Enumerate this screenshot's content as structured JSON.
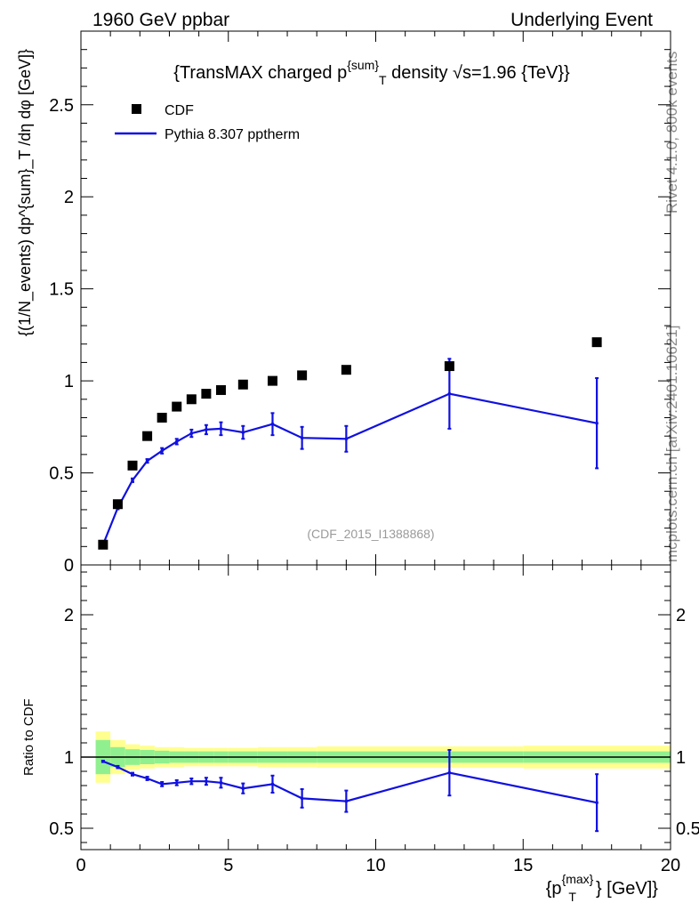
{
  "header": {
    "left": "1960 GeV ppbar",
    "right": "Underlying Event"
  },
  "side_text": {
    "rivet": "Rivet 4.1.0,  800k events",
    "mcplots": "mcplots.cern.ch [arXiv:2401.10621]"
  },
  "chart_data": [
    {
      "type": "scatter",
      "title_parts": {
        "pre": "{TransMAX charged p",
        "sup": "{sum}",
        "sub": "T",
        "post": " density √s=1.96 {TeV}}"
      },
      "ylabel": "{(1/N_events) dp^{sum}_T /dη  dφ [GeV]}",
      "watermark": "(CDF_2015_I1388868)",
      "xlim": [
        0,
        20
      ],
      "ylim": [
        0,
        2.9
      ],
      "xticks": [
        "0",
        "5",
        "10",
        "15",
        "20"
      ],
      "yticks": [
        {
          "v": 0,
          "t": "0"
        },
        {
          "v": 0.5,
          "t": "0.5"
        },
        {
          "v": 1,
          "t": "1"
        },
        {
          "v": 1.5,
          "t": "1.5"
        },
        {
          "v": 2,
          "t": "2"
        },
        {
          "v": 2.5,
          "t": "2.5"
        }
      ],
      "legend": [
        {
          "name": "CDF",
          "style": "marker"
        },
        {
          "name": "Pythia 8.307 pptherm",
          "style": "line"
        }
      ],
      "series": [
        {
          "name": "CDF",
          "x": [
            0.75,
            1.25,
            1.75,
            2.25,
            2.75,
            3.25,
            3.75,
            4.25,
            4.75,
            5.5,
            6.5,
            7.5,
            9.0,
            12.5,
            17.5
          ],
          "y": [
            0.11,
            0.33,
            0.54,
            0.7,
            0.8,
            0.86,
            0.9,
            0.93,
            0.95,
            0.98,
            1.0,
            1.03,
            1.06,
            1.08,
            1.21
          ]
        },
        {
          "name": "Pythia 8.307 pptherm",
          "x": [
            0.75,
            1.25,
            1.75,
            2.25,
            2.75,
            3.25,
            3.75,
            4.25,
            4.75,
            5.5,
            6.5,
            7.5,
            9.0,
            12.5,
            17.5
          ],
          "y": [
            0.11,
            0.31,
            0.46,
            0.565,
            0.62,
            0.67,
            0.715,
            0.735,
            0.74,
            0.72,
            0.765,
            0.69,
            0.685,
            0.93,
            0.77
          ],
          "err": [
            0.005,
            0.008,
            0.01,
            0.01,
            0.015,
            0.015,
            0.02,
            0.025,
            0.035,
            0.035,
            0.06,
            0.06,
            0.07,
            0.19,
            0.245
          ]
        }
      ]
    },
    {
      "type": "line",
      "ylabel": "Ratio to CDF",
      "xlabel_parts": {
        "pre": "{p",
        "sup": "{max}",
        "sub": "T",
        "post": "} [GeV]}"
      },
      "xlim": [
        0,
        20
      ],
      "ylim": [
        0.35,
        2.35
      ],
      "reference": 1,
      "yticks": [
        {
          "v": 0.5,
          "t": "0.5"
        },
        {
          "v": 1,
          "t": "1"
        },
        {
          "v": 2,
          "t": "2"
        }
      ],
      "xticks": [
        "0",
        "5",
        "10",
        "15",
        "20"
      ],
      "bands": {
        "bins": [
          [
            0.5,
            1.0
          ],
          [
            1.0,
            1.5
          ],
          [
            1.5,
            2.0
          ],
          [
            2.0,
            2.5
          ],
          [
            2.5,
            3.0
          ],
          [
            3.0,
            3.5
          ],
          [
            3.5,
            4.0
          ],
          [
            4.0,
            4.5
          ],
          [
            4.5,
            5.0
          ],
          [
            5.0,
            6.0
          ],
          [
            6.0,
            7.0
          ],
          [
            7.0,
            8.0
          ],
          [
            8.0,
            10.0
          ],
          [
            10.0,
            15.0
          ],
          [
            15.0,
            20.0
          ]
        ],
        "stat": [
          0.12,
          0.07,
          0.055,
          0.05,
          0.045,
          0.04,
          0.04,
          0.04,
          0.04,
          0.04,
          0.04,
          0.04,
          0.04,
          0.04,
          0.04
        ],
        "total": [
          0.18,
          0.12,
          0.09,
          0.08,
          0.07,
          0.07,
          0.065,
          0.065,
          0.065,
          0.065,
          0.07,
          0.07,
          0.075,
          0.075,
          0.08
        ]
      },
      "series": [
        {
          "name": "Pythia 8.307 pptherm / CDF",
          "x": [
            0.75,
            1.25,
            1.75,
            2.25,
            2.75,
            3.25,
            3.75,
            4.25,
            4.75,
            5.5,
            6.5,
            7.5,
            9.0,
            12.5,
            17.5
          ],
          "y": [
            0.97,
            0.93,
            0.88,
            0.85,
            0.81,
            0.82,
            0.83,
            0.83,
            0.82,
            0.78,
            0.81,
            0.71,
            0.69,
            0.89,
            0.68
          ],
          "err": [
            0.005,
            0.008,
            0.01,
            0.012,
            0.015,
            0.018,
            0.02,
            0.025,
            0.035,
            0.035,
            0.06,
            0.065,
            0.075,
            0.16,
            0.2
          ]
        }
      ]
    }
  ],
  "colors": {
    "mc": "#1010e0",
    "data": "#000000",
    "band_stat": "#90f090",
    "band_total": "#ffff90"
  }
}
